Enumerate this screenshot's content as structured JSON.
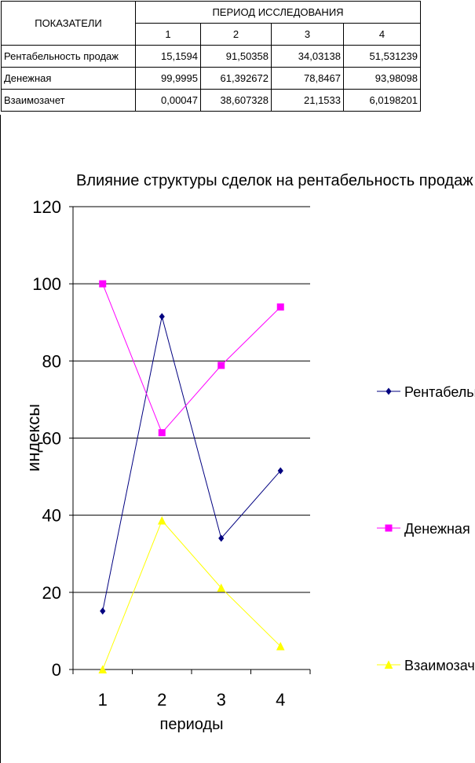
{
  "table": {
    "header": [
      "ПОКАЗАТЕЛИ",
      "ПЕРИОД ИССЛЕДОВАНИЯ"
    ],
    "periods": [
      "1",
      "2",
      "3",
      "4"
    ],
    "rows": [
      [
        "Рентабельность продаж",
        "15,1594",
        "91,50358",
        "34,03138",
        "51,531239"
      ],
      [
        "Денежная",
        "99,9995",
        "61,392672",
        "78,8467",
        "93,98098"
      ],
      [
        "Взаимозачет",
        "0,00047",
        "38,607328",
        "21,1533",
        "6,0198201"
      ]
    ]
  },
  "chart_data": {
    "type": "line",
    "title": "Влияние структуры сделок на рентабельность продаж",
    "x_label": "периоды",
    "y_label": "индексы",
    "categories": [
      "1",
      "2",
      "3",
      "4"
    ],
    "series": [
      {
        "name": "Рентабельность продаж",
        "color": "#000080",
        "marker": "diamond",
        "values": [
          15.1594,
          91.50358,
          34.03138,
          51.531239
        ]
      },
      {
        "name": "Денежная",
        "color": "#ff00ff",
        "marker": "square",
        "values": [
          99.9995,
          61.392672,
          78.8467,
          93.98098
        ]
      },
      {
        "name": "Взаимозачет",
        "color": "#ffff00",
        "marker": "triangle",
        "values": [
          0.00047,
          38.607328,
          21.1533,
          6.0198201
        ]
      }
    ],
    "ylim": [
      0,
      120
    ],
    "yticks": [
      0,
      20,
      40,
      60,
      80,
      100,
      120
    ],
    "grid": true,
    "legend": "right"
  }
}
